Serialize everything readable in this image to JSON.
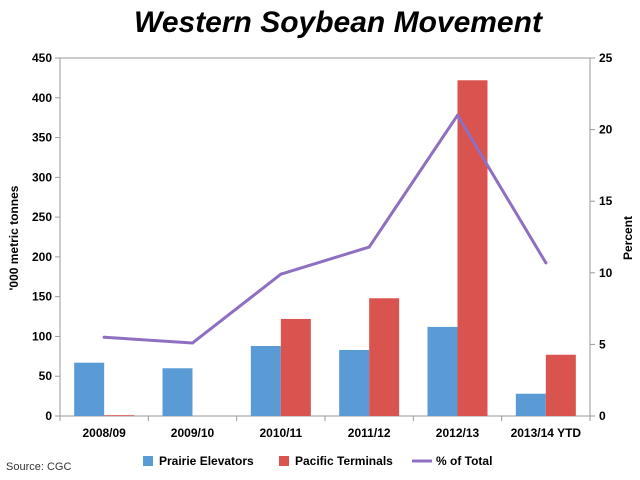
{
  "chart_data": {
    "type": "bar",
    "title": "Western Soybean Movement",
    "categories": [
      "2008/09",
      "2009/10",
      "2010/11",
      "2011/12",
      "2012/13",
      "2013/14 YTD"
    ],
    "series": [
      {
        "name": "Prairie Elevators",
        "type": "bar",
        "axis": "left",
        "color": "#5b9bd5",
        "values": [
          67,
          60,
          88,
          83,
          112,
          28
        ]
      },
      {
        "name": "Pacific Terminals",
        "type": "bar",
        "axis": "left",
        "color": "#d9534f",
        "values": [
          1,
          0,
          122,
          148,
          422,
          77
        ]
      },
      {
        "name": "% of Total",
        "type": "line",
        "axis": "right",
        "color": "#8e6fc1",
        "values": [
          5.5,
          5.1,
          9.9,
          11.8,
          21.0,
          10.7
        ]
      }
    ],
    "y_left": {
      "label": "'000 metric tonnes",
      "min": 0,
      "max": 450,
      "ticks": [
        0,
        50,
        100,
        150,
        200,
        250,
        300,
        350,
        400,
        450
      ]
    },
    "y_right": {
      "label": "Percent",
      "min": 0,
      "max": 25,
      "ticks": [
        0,
        5,
        10,
        15,
        20,
        25
      ]
    },
    "grid": false,
    "legend_position": "bottom",
    "source": "Source: CGC"
  }
}
